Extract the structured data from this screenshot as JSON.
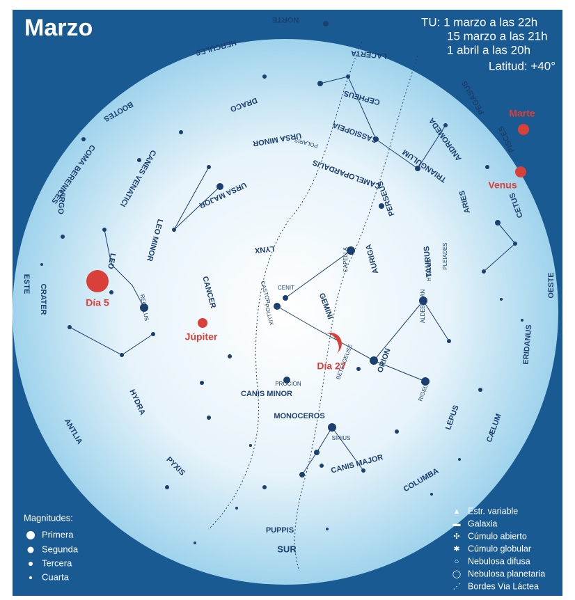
{
  "header": {
    "title": "Marzo",
    "times": [
      "TU: 1 marzo a las 22h",
      "15 marzo a las 21h",
      "1 abril a las 20h"
    ],
    "latitude": "Latitud: +40°"
  },
  "cardinals": {
    "north": "NORTE",
    "south": "SUR",
    "east": "ESTE",
    "west": "OESTE"
  },
  "constellations": [
    "HERCULES",
    "BOOTES",
    "DRACO",
    "URSA MINOR",
    "CEPHEUS",
    "CASSIOPEIA",
    "LACERTA",
    "PEGASUS",
    "ANDROMEDA",
    "PISCES",
    "TRIANGULUM",
    "ARIES",
    "CETUS",
    "PERSEUS",
    "CAMELOPARDALIS",
    "CANES VENATICI",
    "COMA BERENICES",
    "VIRGO",
    "URSA MAJOR",
    "LEO MINOR",
    "LYNX",
    "AURIGA",
    "TAURUS",
    "LEO",
    "CRATER",
    "CANCER",
    "GEMINI",
    "ORION",
    "ERIDANUS",
    "HYDRA",
    "CANIS MINOR",
    "MONOCEROS",
    "LEPUS",
    "CÆLUM",
    "ANTLIA",
    "CANIS MAJOR",
    "COLUMBA",
    "PYXIS",
    "PUPPIS"
  ],
  "stars": [
    "REGULUS",
    "POLLUX",
    "CASTOR",
    "PROCION",
    "BETELGEUSE",
    "RIGEL",
    "ALDEBARAN",
    "CAPELLA",
    "SIRIUS",
    "CENIT",
    "PLEIADES",
    "HYADES",
    "POLARIS"
  ],
  "planets": {
    "mars": "Marte",
    "venus": "Venus",
    "jupiter": "Júpiter",
    "moon_first": "Día 5",
    "moon_second": "Día 27"
  },
  "legend_magnitudes": {
    "title": "Magnitudes:",
    "items": [
      "Primera",
      "Segunda",
      "Tercera",
      "Cuarta"
    ]
  },
  "legend_objects": [
    "Estr. variable",
    "Galaxia",
    "Cúmulo abierto",
    "Cúmulo globular",
    "Nebulosa difusa",
    "Nebulosa planetaria",
    "Bordes Via Láctea"
  ]
}
